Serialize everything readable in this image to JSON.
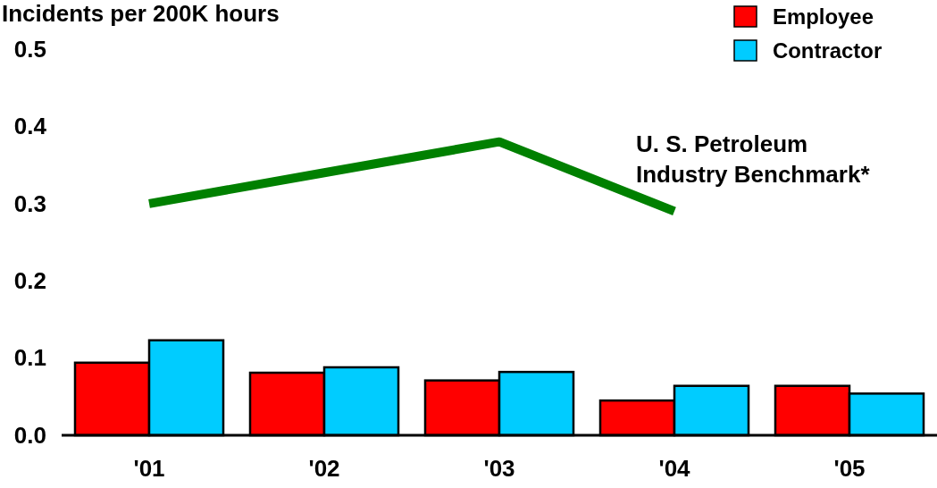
{
  "chart_data": {
    "type": "bar",
    "ylabel": "Incidents per 200K hours",
    "categories": [
      "'01",
      "'02",
      "'03",
      "'04",
      "'05"
    ],
    "series": [
      {
        "name": "Employee",
        "color": "#ff0000",
        "values": [
          0.094,
          0.081,
          0.071,
          0.045,
          0.064
        ]
      },
      {
        "name": "Contractor",
        "color": "#00ccff",
        "values": [
          0.123,
          0.088,
          0.082,
          0.064,
          0.054
        ]
      },
      {
        "name": "U. S. Petroleum Industry Benchmark*",
        "type": "line",
        "color": "#008000",
        "values": [
          0.3,
          0.34,
          0.38,
          0.29,
          null
        ]
      }
    ],
    "ylim": [
      0,
      0.5
    ],
    "yticks": [
      {
        "value": 0,
        "label": "0.0"
      },
      0.1,
      0.2,
      0.3,
      0.4,
      0.5
    ],
    "legend": "top right"
  }
}
